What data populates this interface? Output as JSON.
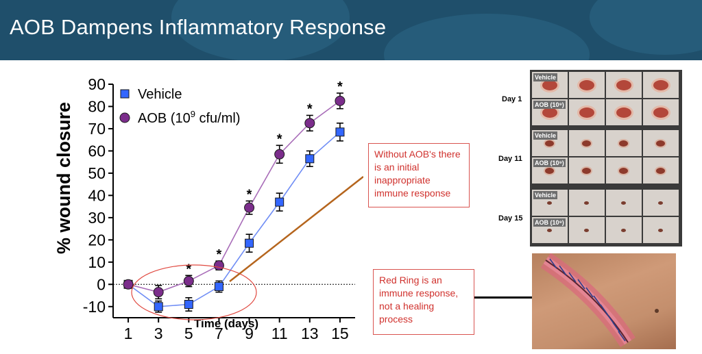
{
  "slide": {
    "title": "AOB Dampens Inflammatory Response"
  },
  "chart_data": {
    "type": "line",
    "ylabel": "% wound closure",
    "xlabel": "Time (days)",
    "x": [
      1,
      3,
      5,
      7,
      9,
      11,
      13,
      15
    ],
    "ylim": [
      -15,
      90
    ],
    "yticks": [
      -10,
      0,
      10,
      20,
      30,
      40,
      50,
      60,
      70,
      80,
      90
    ],
    "tick_labels": [
      "-10",
      "0",
      "10",
      "20",
      "30",
      "40",
      "50",
      "60",
      "70",
      "80",
      "90"
    ],
    "x_tick_labels": [
      "1",
      "3",
      "5",
      "7",
      "9",
      "11",
      "13",
      "15"
    ],
    "zero_line": "dotted",
    "legend": "top-left",
    "series": [
      {
        "name": "Vehicle",
        "marker": "square",
        "color": "#3366ff",
        "line_color": "#6f8df5",
        "values": [
          0,
          -10,
          -9,
          -1,
          18.5,
          37,
          56.5,
          68.5
        ],
        "error": [
          1.5,
          2.5,
          3,
          2.5,
          4,
          4,
          3.5,
          4
        ]
      },
      {
        "name": "AOB (10",
        "name_sup": "9",
        "name_tail": " cfu/ml)",
        "marker": "circle",
        "color": "#7b2d8b",
        "line_color": "#a86cb8",
        "values": [
          0,
          -3.5,
          1.5,
          8.5,
          34.5,
          58.5,
          72.5,
          82.5
        ],
        "error": [
          1.5,
          3,
          2.5,
          2,
          3,
          4,
          3.5,
          3.5
        ]
      }
    ],
    "significance_marker": "*",
    "significant_x": [
      5,
      7,
      9,
      11,
      13,
      15
    ]
  },
  "callouts": {
    "immune": "Without AOB's there is an initial inappropriate immune response",
    "red_ring": "Red Ring is an immune response, not a healing process"
  },
  "photo_panel": {
    "days": [
      "Day 1",
      "Day 11",
      "Day 15"
    ],
    "vehicle_tag": "Vehicle",
    "aob_tag": "AOB (10⁹)"
  },
  "colors": {
    "header_bg": "#1f4f6b",
    "callout_text": "#d0312d",
    "highlight_ellipse": "#e0483f",
    "arrow": "#b5651d"
  }
}
